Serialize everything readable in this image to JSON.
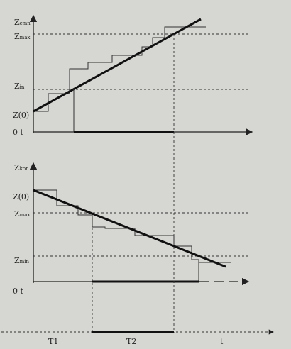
{
  "top_panel": {
    "labels": [
      {
        "main": "Z",
        "sub": "cmn"
      },
      {
        "main": "Z",
        "sub": "max"
      },
      {
        "main": "Z",
        "sub": "in"
      },
      {
        "main": "Z(0)",
        "sub": ""
      }
    ],
    "origin": "0 t"
  },
  "bottom_panel": {
    "labels": [
      {
        "main": "Z",
        "sub": "kon"
      },
      {
        "main": "Z(0)",
        "sub": ""
      },
      {
        "main": "Z",
        "sub": "max"
      },
      {
        "main": "Z",
        "sub": "min"
      }
    ],
    "origin": "0 t"
  },
  "time_axis": {
    "labels": [
      "T1",
      "T2",
      "t"
    ]
  }
}
